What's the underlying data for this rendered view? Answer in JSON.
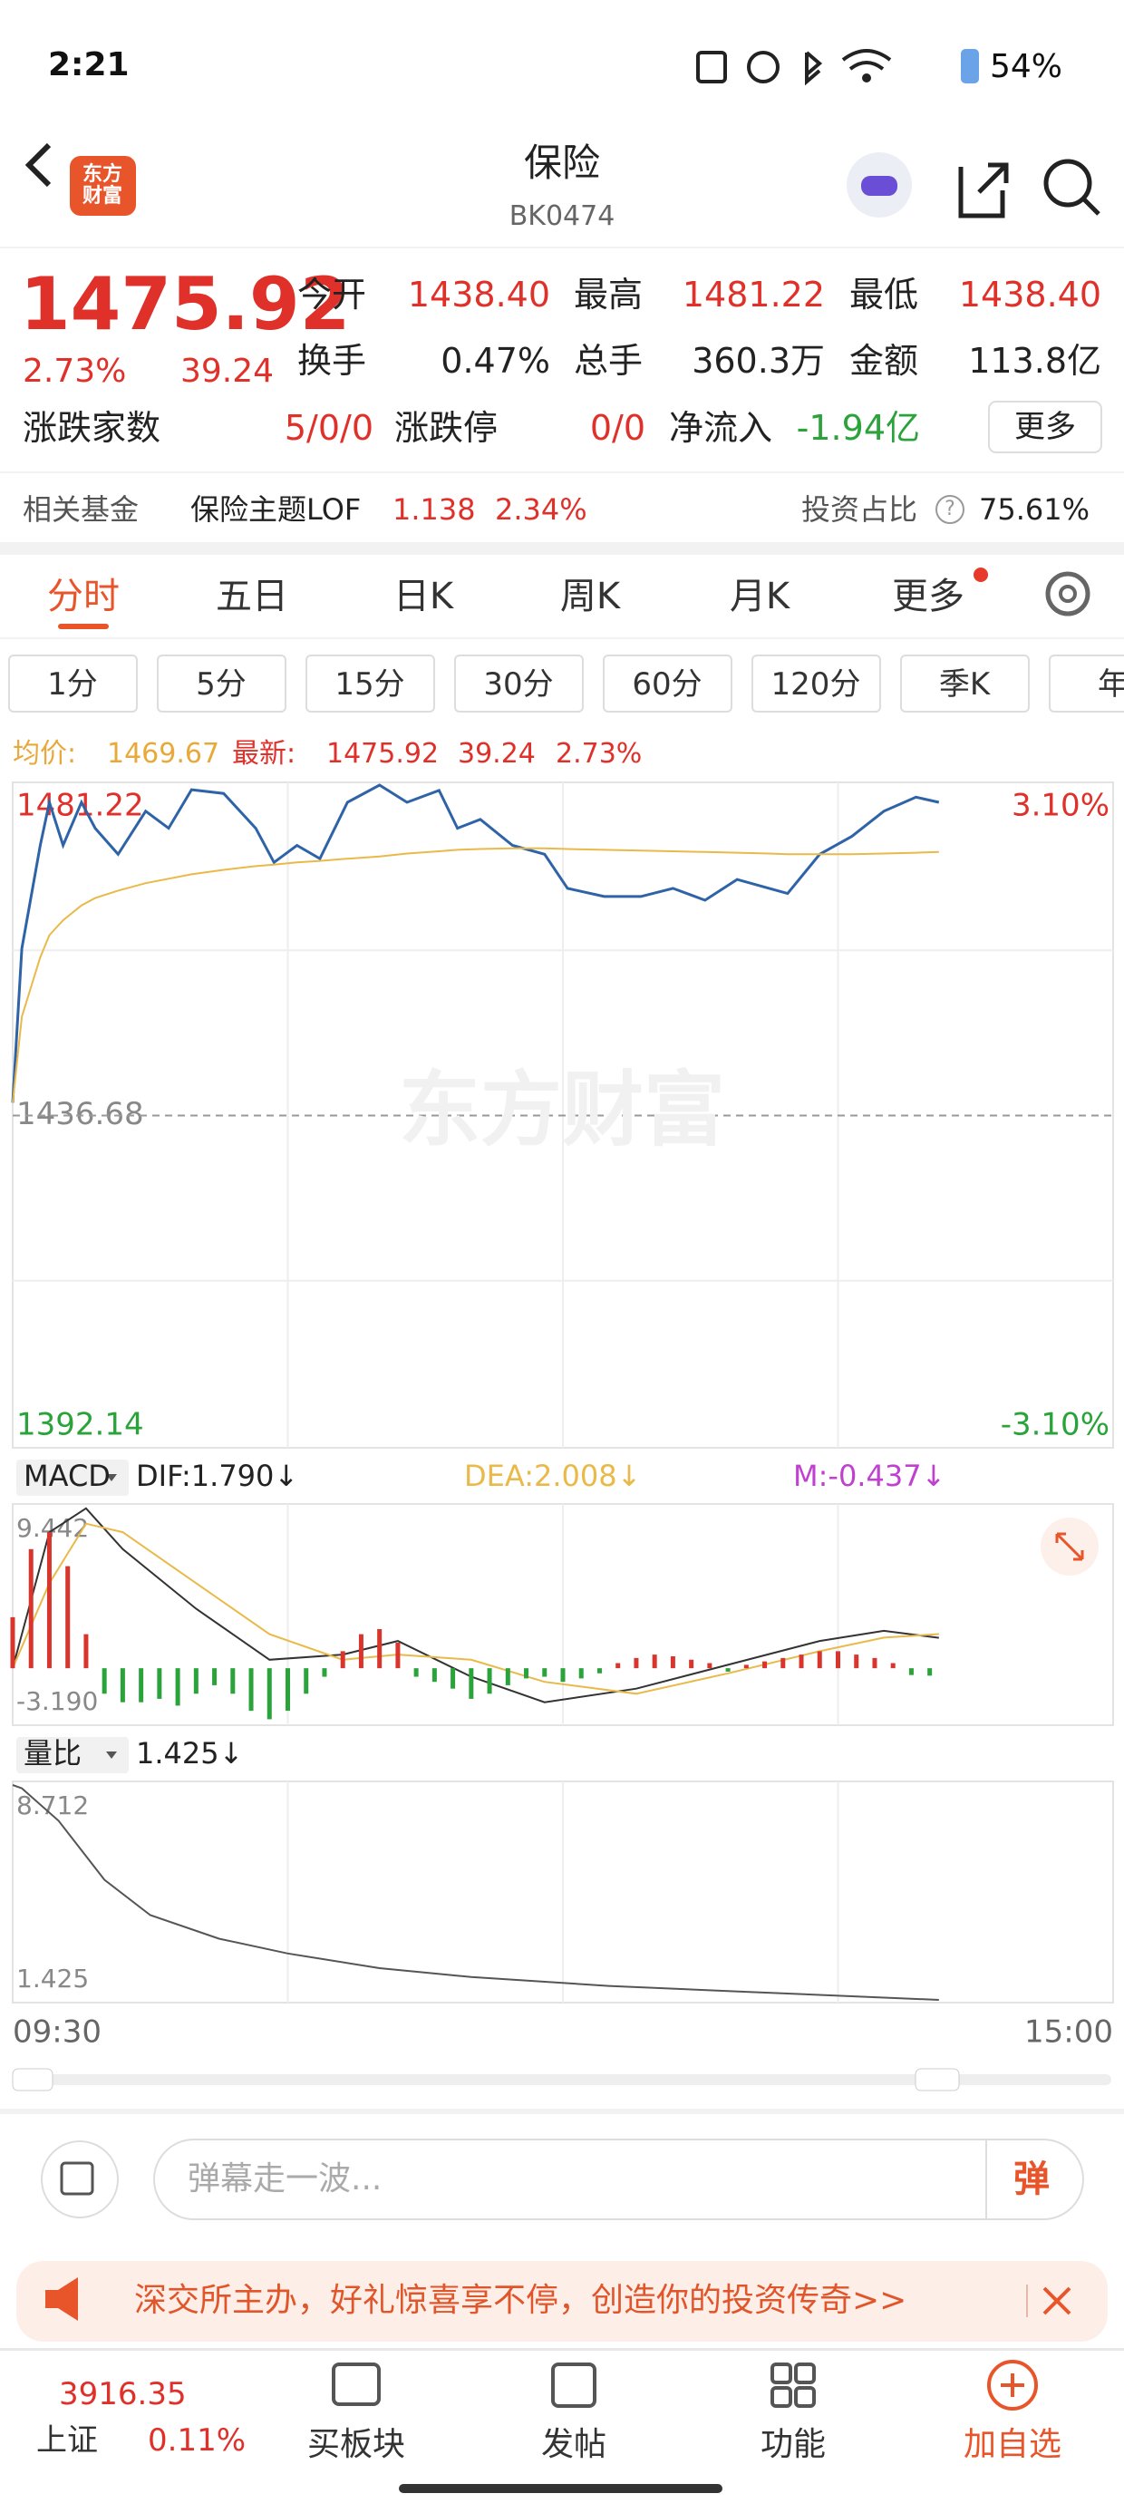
{
  "status": {
    "time": "2:21",
    "battery": "54%"
  },
  "header": {
    "logo": "东方财富",
    "title": "保险",
    "code": "BK0474"
  },
  "quote": {
    "price": "1475.92",
    "change_pct": "2.73%",
    "change": "39.24",
    "fields": [
      {
        "label": "今开",
        "value": "1438.40"
      },
      {
        "label": "最高",
        "value": "1481.22"
      },
      {
        "label": "最低",
        "value": "1438.40"
      },
      {
        "label": "换手",
        "value": "0.47%"
      },
      {
        "label": "总手",
        "value": "360.3万"
      },
      {
        "label": "金额",
        "value": "113.8亿"
      }
    ],
    "breadth_label": "涨跌家数",
    "breadth": "5/0/0",
    "limit_label": "涨跌停",
    "limit": "0/0",
    "net_flow_label": "净流入",
    "net_flow": "-1.94亿",
    "more": "更多"
  },
  "fund": {
    "label": "相关基金",
    "name": "保险主题LOF",
    "price": "1.138",
    "pct": "2.34%",
    "ratio_label": "投资占比",
    "help": "?",
    "ratio": "75.61%"
  },
  "tabs": [
    "分时",
    "五日",
    "日K",
    "周K",
    "月K",
    "更多"
  ],
  "periods": [
    "1分",
    "5分",
    "15分",
    "30分",
    "60分",
    "120分",
    "季K",
    "年"
  ],
  "summary": {
    "avg_label": "均价:",
    "avg": "1469.67",
    "latest_label": "最新:",
    "latest": "1475.92",
    "change": "39.24",
    "pct": "2.73%"
  },
  "chart_data": [
    {
      "type": "line",
      "watermark": "东方财富",
      "x": [
        0,
        2,
        6,
        8,
        11,
        15,
        18,
        23,
        29,
        34,
        39,
        46,
        53,
        57,
        62,
        67,
        73,
        80,
        86,
        93,
        97,
        102,
        109,
        116,
        121,
        129,
        137,
        144,
        151,
        158,
        165,
        169,
        176,
        183,
        190,
        197,
        202
      ],
      "series": [
        {
          "color": "#2f63a8",
          "values": [
            1438.4,
            1459.2,
            1473.1,
            1478.9,
            1473.1,
            1478.9,
            1475.4,
            1471.9,
            1477.7,
            1475.4,
            1480.6,
            1480.1,
            1475.4,
            1470.8,
            1473.1,
            1471.3,
            1478.9,
            1481.22,
            1478.9,
            1480.5,
            1475.4,
            1476.6,
            1473.1,
            1471.9,
            1467.3,
            1466.2,
            1466.2,
            1467.3,
            1465.7,
            1468.5,
            1467.3,
            1466.6,
            1471.9,
            1474.3,
            1477.7,
            1479.6,
            1478.9
          ]
        },
        {
          "color": "#e9b949",
          "values": [
            1438.4,
            1450,
            1458,
            1461,
            1463,
            1465,
            1466,
            1467,
            1468,
            1468.6,
            1469.2,
            1469.8,
            1470.3,
            1470.5,
            1470.8,
            1471,
            1471.3,
            1471.6,
            1472,
            1472.3,
            1472.5,
            1472.6,
            1472.7,
            1472.7,
            1472.6,
            1472.5,
            1472.4,
            1472.3,
            1472.2,
            1472.1,
            1472,
            1471.9,
            1471.9,
            1471.9,
            1472,
            1472.1,
            1472.2
          ]
        }
      ],
      "xlim": [
        0,
        240
      ],
      "xticks": [
        {
          "value": 0,
          "label": "09:30"
        },
        {
          "value": 240,
          "label": "15:00"
        }
      ],
      "xgrid": [
        60,
        120,
        180
      ],
      "ylim": [
        1392.14,
        1481.22
      ],
      "yticks": [
        1481.22,
        1436.68,
        1392.14
      ],
      "ygrid": [
        1458.95,
        1414.41
      ],
      "y2lim": [
        -3.1,
        3.1
      ],
      "y2ticks": [
        {
          "value": 3.1,
          "label": "3.10%"
        },
        {
          "value": -3.1,
          "label": "-3.10%"
        }
      ]
    },
    {
      "type": "macd",
      "indicator": "MACD",
      "xlim": [
        0,
        240
      ],
      "xgrid": [
        60,
        120,
        180
      ],
      "ylim": [
        -3.19,
        9.442
      ],
      "yticks": [
        9.442,
        {
          "value": -3.19,
          "label": "-3.190"
        }
      ],
      "series": [
        {
          "name": "DIF:1.790↓",
          "color": "#333333",
          "x": [
            0,
            8,
            16,
            24,
            40,
            56,
            72,
            84,
            100,
            116,
            136,
            156,
            176,
            190,
            202
          ],
          "values": [
            0,
            8,
            9.4,
            7,
            3.5,
            0.5,
            0.8,
            1.6,
            -0.5,
            -2,
            -1.2,
            0.2,
            1.6,
            2.2,
            1.79
          ]
        },
        {
          "name": "DEA:2.008↓",
          "color": "#e9b949",
          "x": [
            0,
            8,
            16,
            24,
            40,
            56,
            72,
            84,
            100,
            116,
            136,
            156,
            176,
            190,
            202
          ],
          "values": [
            0,
            5,
            8.5,
            8,
            5,
            2,
            0.5,
            0.8,
            0.5,
            -0.8,
            -1.5,
            -0.3,
            1,
            1.8,
            2.008
          ]
        },
        {
          "name": "M:-0.437↓",
          "color": "#c040d0",
          "up_color": "#d9352c",
          "down_color": "#2aa33a",
          "x": [
            0,
            4,
            8,
            12,
            16,
            20,
            24,
            28,
            32,
            36,
            40,
            44,
            48,
            52,
            56,
            60,
            64,
            68,
            72,
            76,
            80,
            84,
            88,
            92,
            96,
            100,
            104,
            108,
            112,
            116,
            120,
            124,
            128,
            132,
            136,
            140,
            144,
            148,
            152,
            156,
            160,
            164,
            168,
            172,
            176,
            180,
            184,
            188,
            192,
            196,
            200
          ],
          "values": [
            3,
            7,
            8,
            6,
            2,
            -1.5,
            -2,
            -2,
            -1.8,
            -2.2,
            -1.5,
            -1,
            -1.5,
            -2.5,
            -3,
            -2.5,
            -1.5,
            -0.5,
            1,
            2,
            2.3,
            1.5,
            -0.5,
            -0.8,
            -1.2,
            -1.8,
            -1.5,
            -1,
            -0.6,
            -0.5,
            -0.8,
            -0.6,
            -0.3,
            0.3,
            0.6,
            0.8,
            0.7,
            0.5,
            0.3,
            -0.2,
            0.2,
            0.4,
            0.6,
            0.8,
            1,
            1,
            0.8,
            0.6,
            0.3,
            -0.4,
            -0.437
          ]
        }
      ]
    },
    {
      "type": "line",
      "indicator": "量比",
      "xlim": [
        0,
        240
      ],
      "xgrid": [
        60,
        120,
        180
      ],
      "ylim": [
        1.425,
        8.712
      ],
      "yticks": [
        8.712,
        1.425
      ],
      "series": [
        {
          "name": "1.425↓",
          "color": "#555555",
          "x": [
            0,
            2,
            10,
            20,
            30,
            45,
            60,
            80,
            100,
            130,
            160,
            202
          ],
          "values": [
            8.712,
            8.6,
            7.5,
            5.5,
            4.3,
            3.5,
            3,
            2.5,
            2.2,
            1.9,
            1.7,
            1.425
          ]
        }
      ]
    }
  ],
  "comment": {
    "placeholder": "弹幕走一波...",
    "button": "弹"
  },
  "banner": {
    "text": "深交所主办，好礼惊喜享不停，创造你的投资传奇>>"
  },
  "nav": {
    "index": "3916.35",
    "index_name": "上证",
    "index_pct": "0.11%",
    "items": [
      "买板块",
      "发帖",
      "功能",
      "加自选"
    ]
  }
}
